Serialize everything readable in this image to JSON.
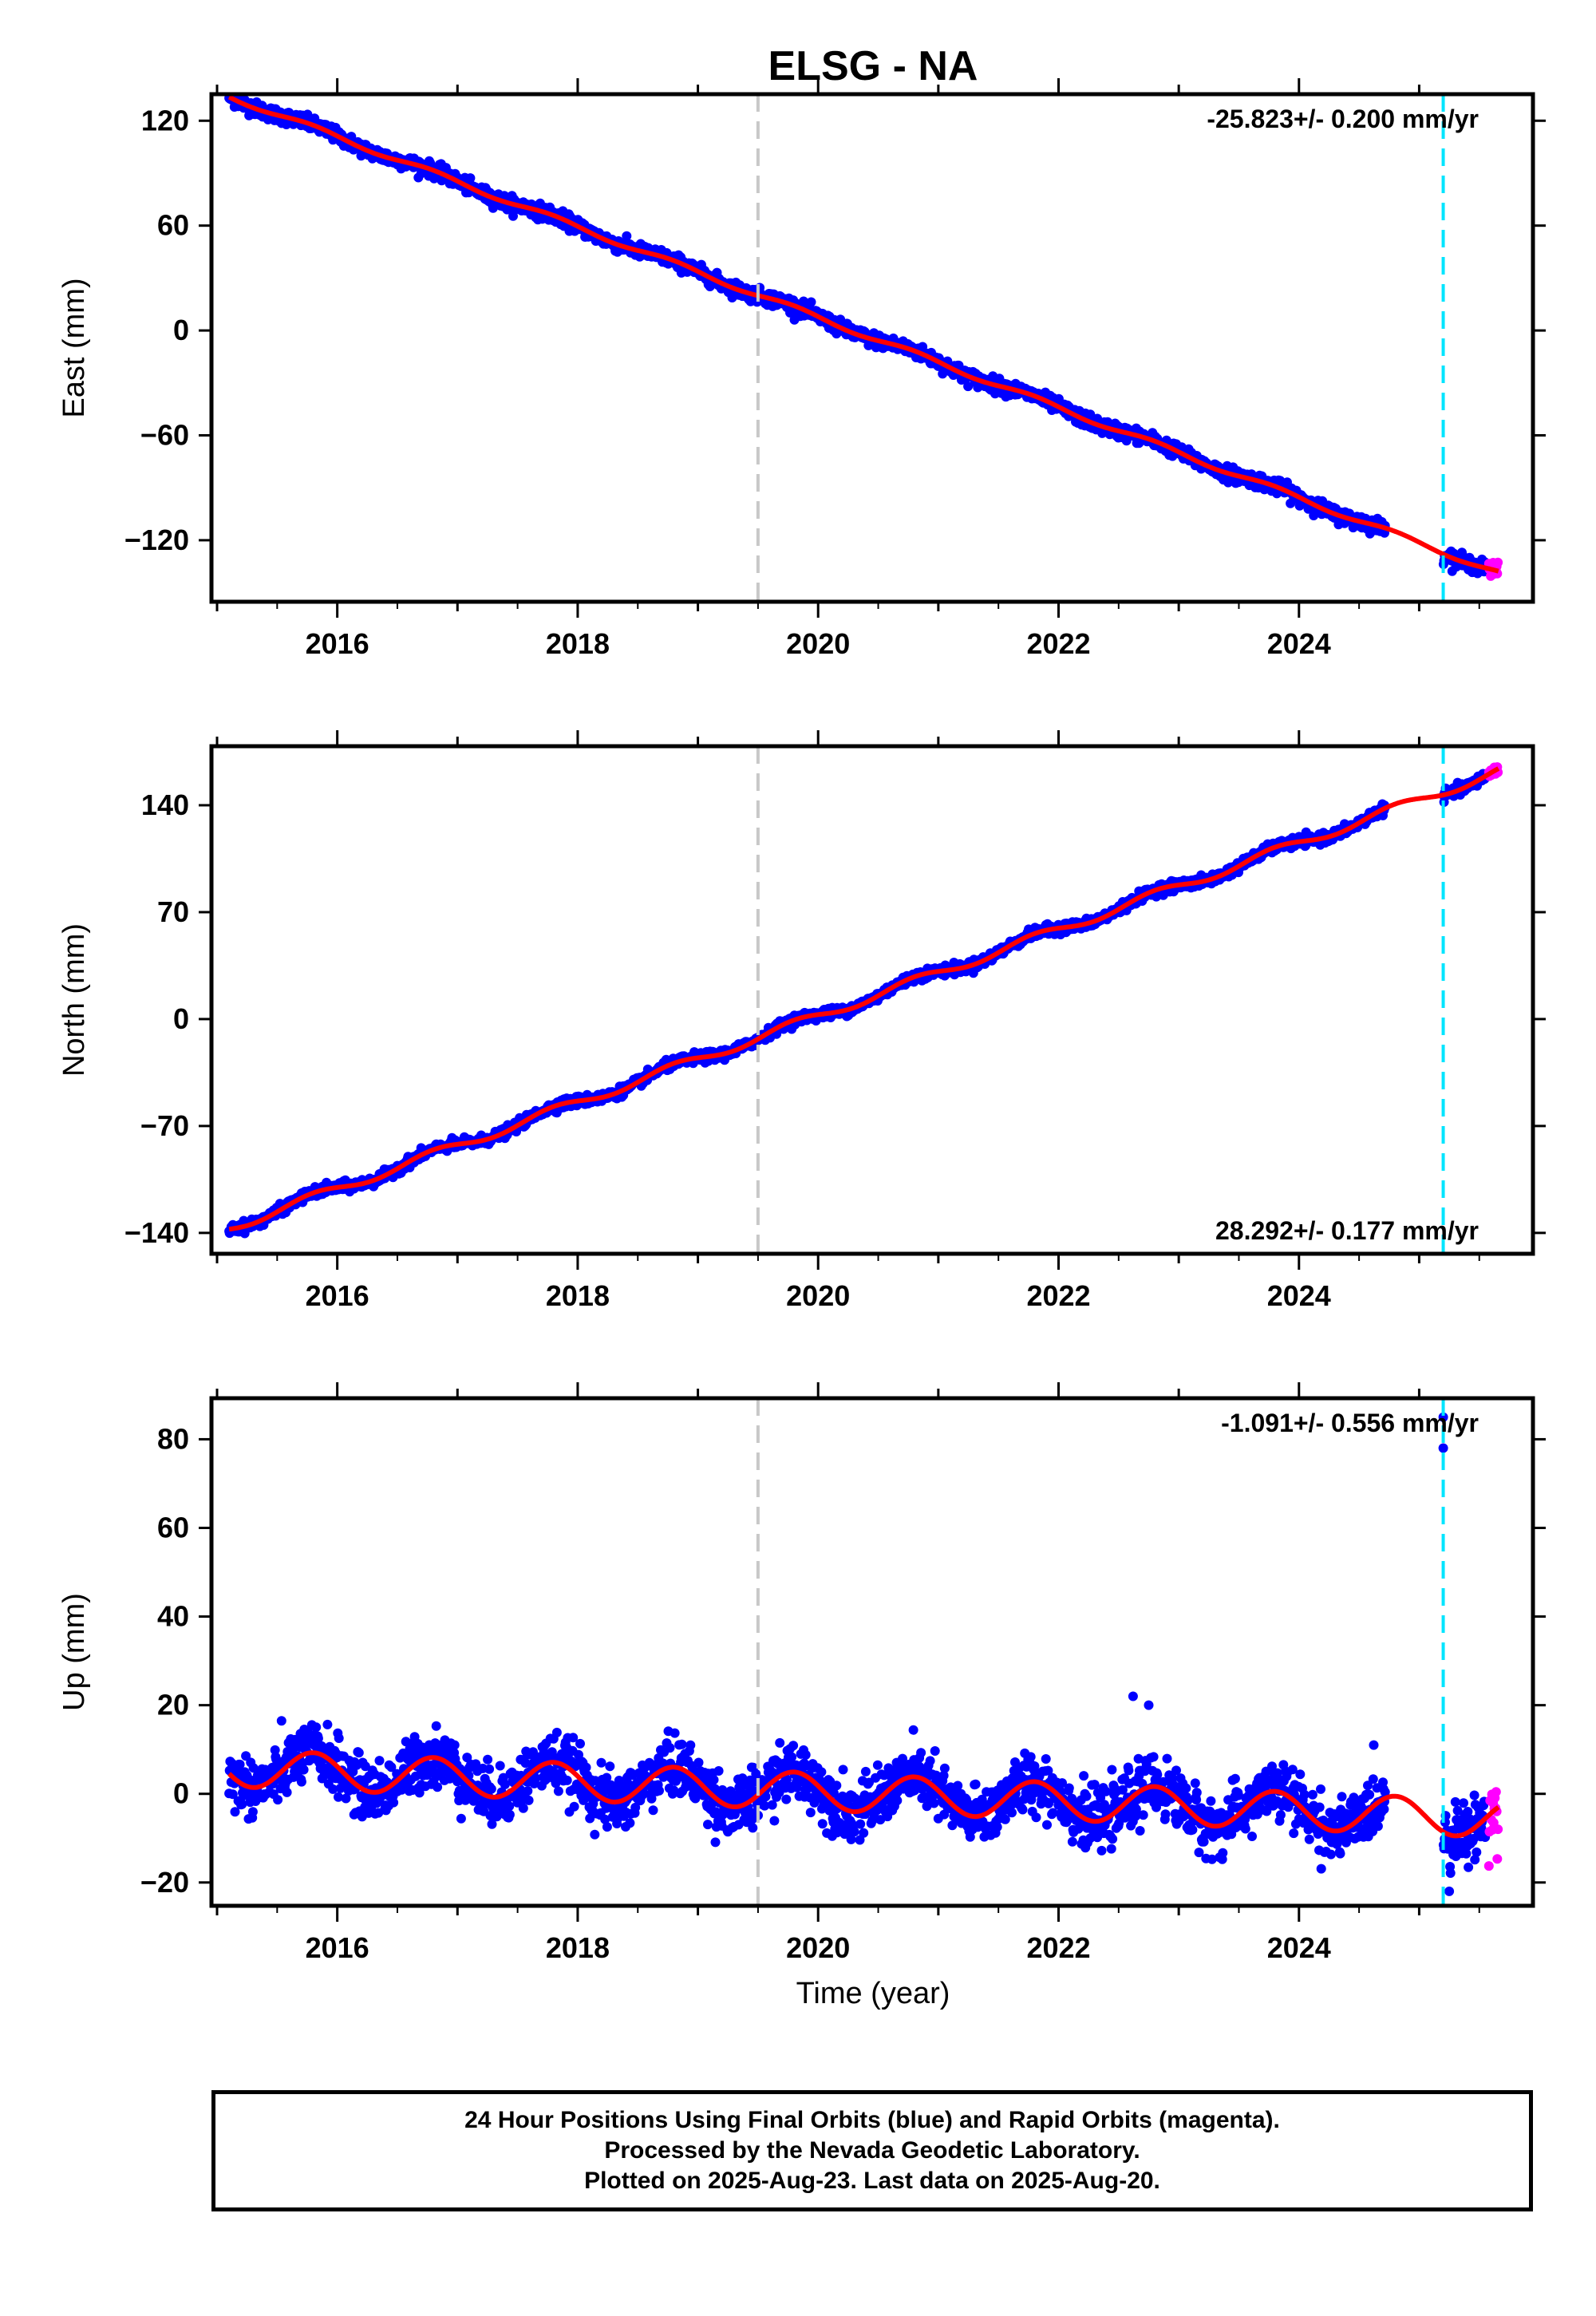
{
  "title": "ELSG - NA",
  "colors": {
    "final_orbits": "#0000ff",
    "rapid_orbits": "#ff00ff",
    "model_fit": "#ff0000",
    "reference_line": "#c8c8c8",
    "event_line": "#00e5ff"
  },
  "footer": {
    "line1": "24 Hour Positions Using Final Orbits (blue) and Rapid Orbits (magenta).",
    "line2": "Processed by the Nevada Geodetic Laboratory.",
    "line3": "Plotted on 2025-Aug-23. Last data on 2025-Aug-20."
  },
  "chart_data": [
    {
      "type": "scatter",
      "ylabel": "East (mm)",
      "xlim": [
        2015.0,
        2025.9
      ],
      "ylim": [
        -152,
        132
      ],
      "yticks": [
        120,
        60,
        0,
        -60,
        -120
      ],
      "yticklabels": [
        "120",
        "60",
        "0",
        "−60",
        "−120"
      ],
      "xticks": [
        2016,
        2018,
        2020,
        2022,
        2024
      ],
      "xticklabels": [
        "2016",
        "2018",
        "2020",
        "2022",
        "2024"
      ],
      "rate_label": "-25.823+/- 0.200 mm/yr",
      "rate_label_position": "top-right",
      "reference_year": 2019.5,
      "event_year": 2025.2,
      "trend_rate": -25.823,
      "trend_value_at_2020": 7.5,
      "seasonal_amplitude": 1.5,
      "scatter_noise": 2.0,
      "data_gap": [
        2024.72,
        2025.2
      ],
      "start_value": 124,
      "end_value": -140,
      "outliers": []
    },
    {
      "type": "scatter",
      "ylabel": "North (mm)",
      "xlim": [
        2015.0,
        2025.9
      ],
      "ylim": [
        -150,
        175
      ],
      "yticks": [
        140,
        70,
        0,
        -70,
        -140
      ],
      "yticklabels": [
        "140",
        "70",
        "0",
        "−70",
        "−140"
      ],
      "xticks": [
        2016,
        2018,
        2020,
        2022,
        2024
      ],
      "xticklabels": [
        "2016",
        "2018",
        "2020",
        "2022",
        "2024"
      ],
      "rate_label": "28.292+/- 0.177 mm/yr",
      "rate_label_position": "bottom-right",
      "reference_year": 2019.5,
      "event_year": 2025.2,
      "trend_rate": 28.292,
      "trend_value_at_2020": 2.0,
      "seasonal_amplitude": 3.0,
      "scatter_noise": 1.6,
      "data_gap": [
        2024.72,
        2025.2
      ],
      "start_value": -142,
      "end_value": 168,
      "outliers": []
    },
    {
      "type": "scatter",
      "ylabel": "Up (mm)",
      "xlabel": "Time (year)",
      "xlim": [
        2015.0,
        2025.9
      ],
      "ylim": [
        -24,
        88
      ],
      "yticks": [
        80,
        60,
        40,
        20,
        0,
        -20
      ],
      "yticklabels": [
        "80",
        "60",
        "40",
        "20",
        "0",
        "−20"
      ],
      "xticks": [
        2016,
        2018,
        2020,
        2022,
        2024
      ],
      "xticklabels": [
        "2016",
        "2018",
        "2020",
        "2022",
        "2024"
      ],
      "rate_label": "-1.091+/- 0.556 mm/yr",
      "rate_label_position": "top-right",
      "reference_year": 2019.5,
      "event_year": 2025.2,
      "trend_rate": -1.091,
      "trend_value_at_2020": 0.5,
      "seasonal_amplitude": 4.2,
      "scatter_noise": 3.2,
      "data_gap": [
        2024.72,
        2025.2
      ],
      "start_value": 2,
      "end_value": -5,
      "outliers": [
        {
          "x": 2025.2,
          "y": 85
        },
        {
          "x": 2025.2,
          "y": 78
        },
        {
          "x": 2022.62,
          "y": 22
        },
        {
          "x": 2022.75,
          "y": 20
        },
        {
          "x": 2025.25,
          "y": -22
        }
      ]
    }
  ]
}
